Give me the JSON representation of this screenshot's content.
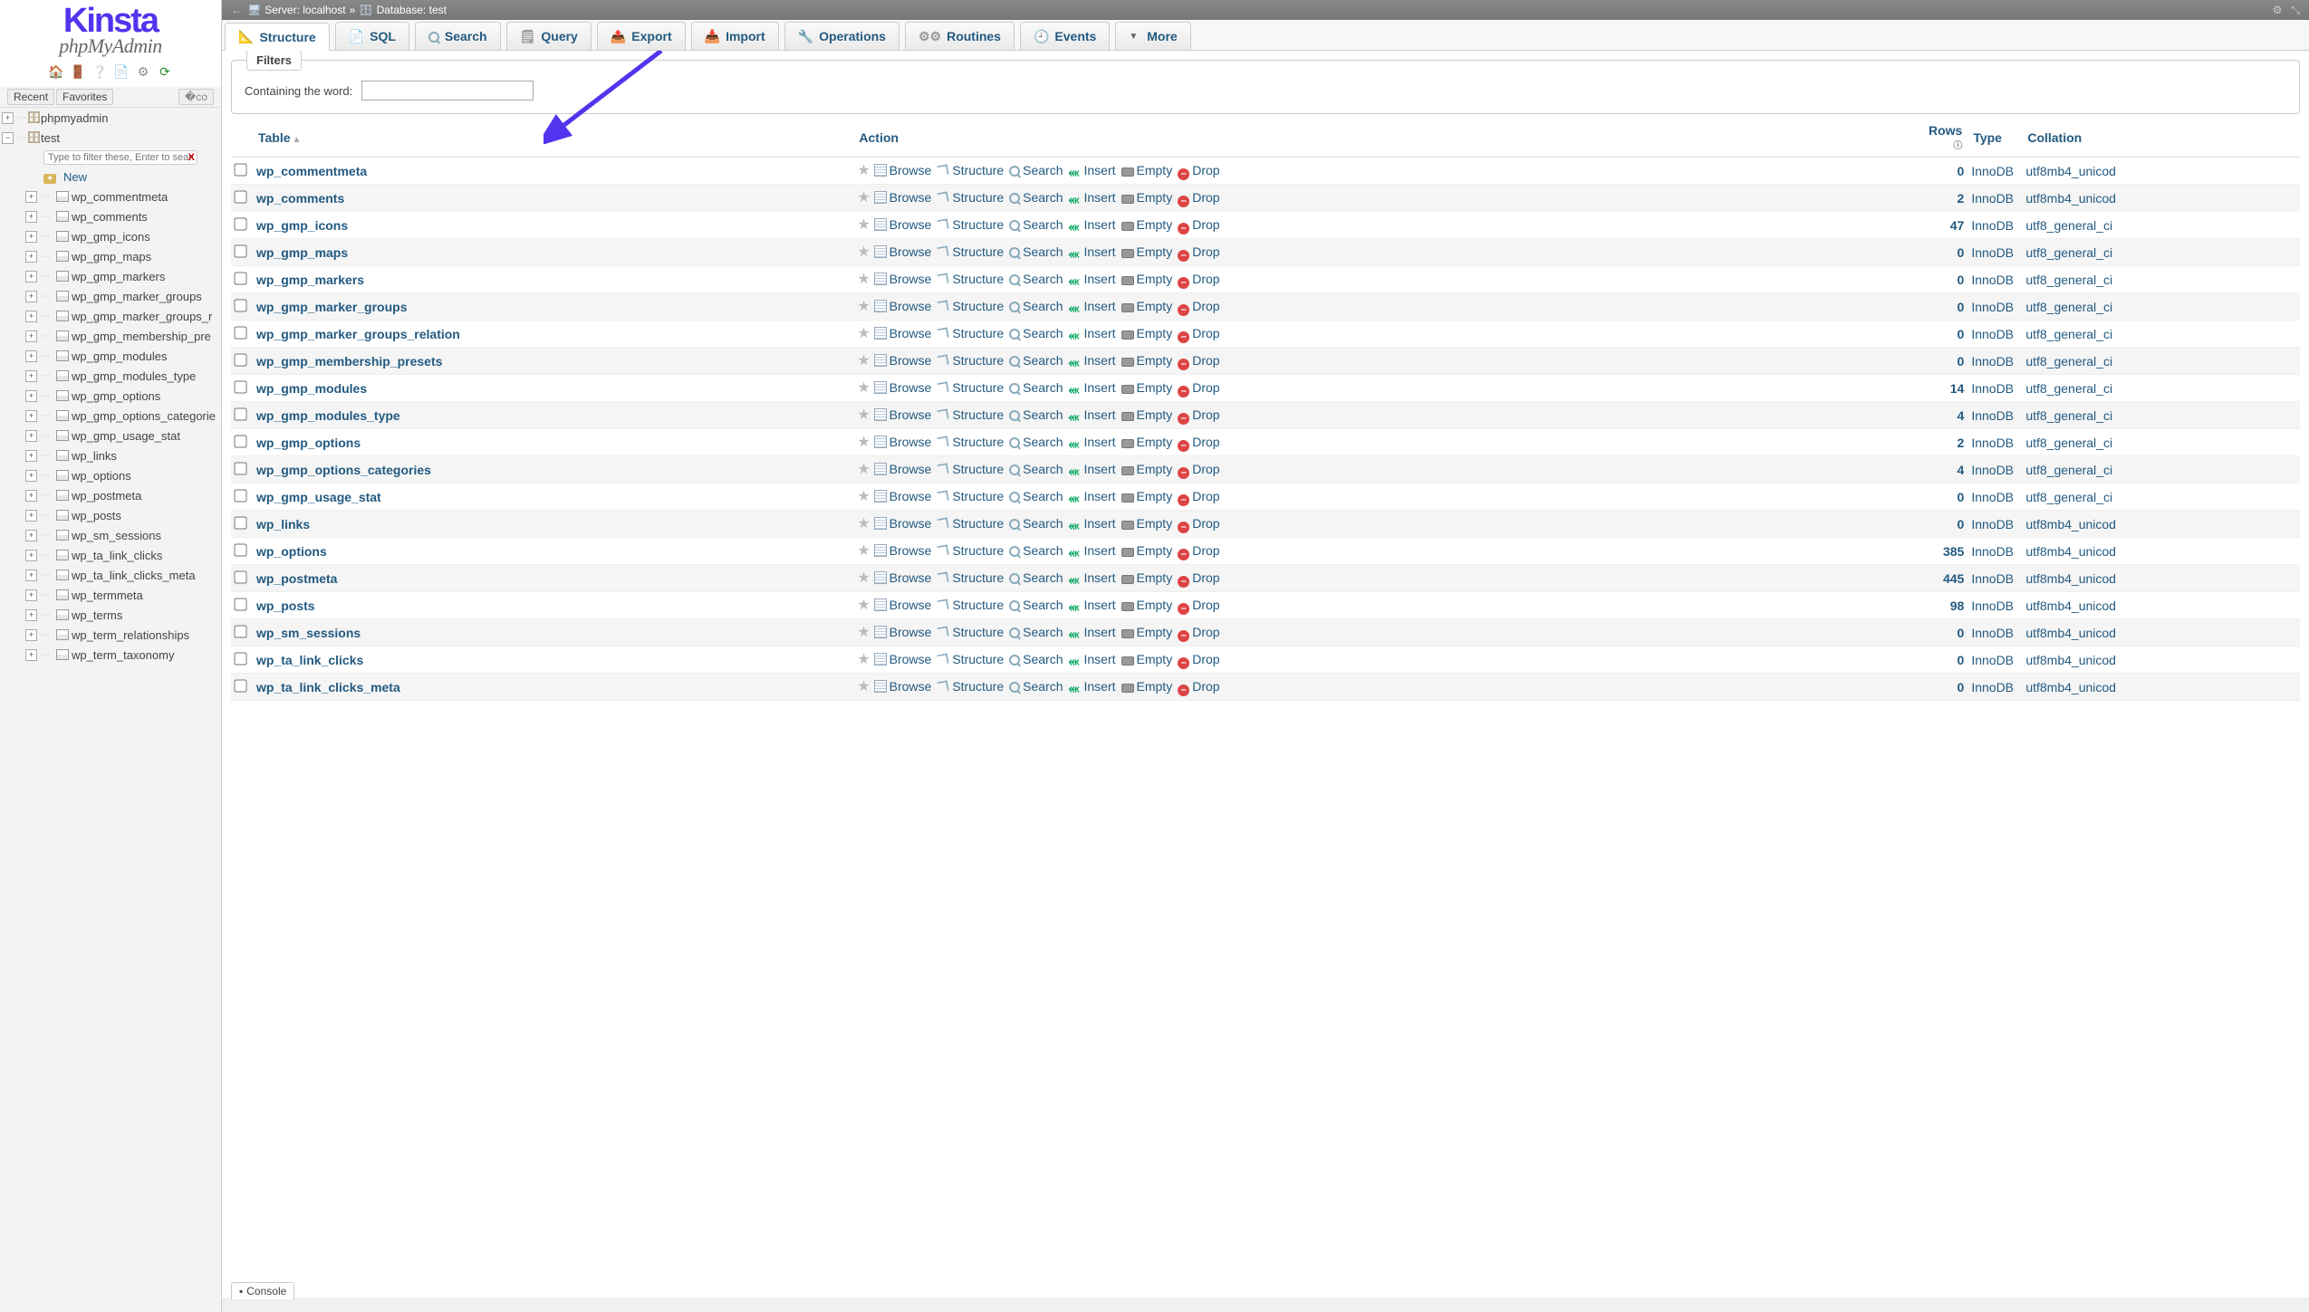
{
  "logo": {
    "brand": "Kinsta",
    "product": "phpMyAdmin"
  },
  "sidebar": {
    "recent_label": "Recent",
    "favorites_label": "Favorites",
    "filter_placeholder": "Type to filter these, Enter to search",
    "new_label": "New",
    "root": "phpmyadmin",
    "active_db": "test",
    "tables": [
      "wp_commentmeta",
      "wp_comments",
      "wp_gmp_icons",
      "wp_gmp_maps",
      "wp_gmp_markers",
      "wp_gmp_marker_groups",
      "wp_gmp_marker_groups_r",
      "wp_gmp_membership_pre",
      "wp_gmp_modules",
      "wp_gmp_modules_type",
      "wp_gmp_options",
      "wp_gmp_options_categorie",
      "wp_gmp_usage_stat",
      "wp_links",
      "wp_options",
      "wp_postmeta",
      "wp_posts",
      "wp_sm_sessions",
      "wp_ta_link_clicks",
      "wp_ta_link_clicks_meta",
      "wp_termmeta",
      "wp_terms",
      "wp_term_relationships",
      "wp_term_taxonomy"
    ]
  },
  "topbar": {
    "server_label": "Server:",
    "server": "localhost",
    "database_label": "Database:",
    "database": "test"
  },
  "tabs": {
    "structure": "Structure",
    "sql": "SQL",
    "search": "Search",
    "query": "Query",
    "export": "Export",
    "import": "Import",
    "operations": "Operations",
    "routines": "Routines",
    "events": "Events",
    "more": "More"
  },
  "filters": {
    "legend": "Filters",
    "containing_label": "Containing the word:"
  },
  "table": {
    "headers": {
      "table": "Table",
      "action": "Action",
      "rows": "Rows",
      "type": "Type",
      "collation": "Collation"
    },
    "action_labels": {
      "browse": "Browse",
      "structure": "Structure",
      "search": "Search",
      "insert": "Insert",
      "empty": "Empty",
      "drop": "Drop"
    },
    "rows": [
      {
        "name": "wp_commentmeta",
        "rows": 0,
        "type": "InnoDB",
        "collation": "utf8mb4_unicod"
      },
      {
        "name": "wp_comments",
        "rows": 2,
        "type": "InnoDB",
        "collation": "utf8mb4_unicod"
      },
      {
        "name": "wp_gmp_icons",
        "rows": 47,
        "type": "InnoDB",
        "collation": "utf8_general_ci"
      },
      {
        "name": "wp_gmp_maps",
        "rows": 0,
        "type": "InnoDB",
        "collation": "utf8_general_ci"
      },
      {
        "name": "wp_gmp_markers",
        "rows": 0,
        "type": "InnoDB",
        "collation": "utf8_general_ci"
      },
      {
        "name": "wp_gmp_marker_groups",
        "rows": 0,
        "type": "InnoDB",
        "collation": "utf8_general_ci"
      },
      {
        "name": "wp_gmp_marker_groups_relation",
        "rows": 0,
        "type": "InnoDB",
        "collation": "utf8_general_ci"
      },
      {
        "name": "wp_gmp_membership_presets",
        "rows": 0,
        "type": "InnoDB",
        "collation": "utf8_general_ci"
      },
      {
        "name": "wp_gmp_modules",
        "rows": 14,
        "type": "InnoDB",
        "collation": "utf8_general_ci"
      },
      {
        "name": "wp_gmp_modules_type",
        "rows": 4,
        "type": "InnoDB",
        "collation": "utf8_general_ci"
      },
      {
        "name": "wp_gmp_options",
        "rows": 2,
        "type": "InnoDB",
        "collation": "utf8_general_ci"
      },
      {
        "name": "wp_gmp_options_categories",
        "rows": 4,
        "type": "InnoDB",
        "collation": "utf8_general_ci"
      },
      {
        "name": "wp_gmp_usage_stat",
        "rows": 0,
        "type": "InnoDB",
        "collation": "utf8_general_ci"
      },
      {
        "name": "wp_links",
        "rows": 0,
        "type": "InnoDB",
        "collation": "utf8mb4_unicod"
      },
      {
        "name": "wp_options",
        "rows": 385,
        "type": "InnoDB",
        "collation": "utf8mb4_unicod"
      },
      {
        "name": "wp_postmeta",
        "rows": 445,
        "type": "InnoDB",
        "collation": "utf8mb4_unicod"
      },
      {
        "name": "wp_posts",
        "rows": 98,
        "type": "InnoDB",
        "collation": "utf8mb4_unicod"
      },
      {
        "name": "wp_sm_sessions",
        "rows": 0,
        "type": "InnoDB",
        "collation": "utf8mb4_unicod"
      },
      {
        "name": "wp_ta_link_clicks",
        "rows": 0,
        "type": "InnoDB",
        "collation": "utf8mb4_unicod"
      },
      {
        "name": "wp_ta_link_clicks_meta",
        "rows": 0,
        "type": "InnoDB",
        "collation": "utf8mb4_unicod"
      }
    ]
  },
  "console_label": "Console",
  "arrow": {
    "color": "#5333ed"
  }
}
